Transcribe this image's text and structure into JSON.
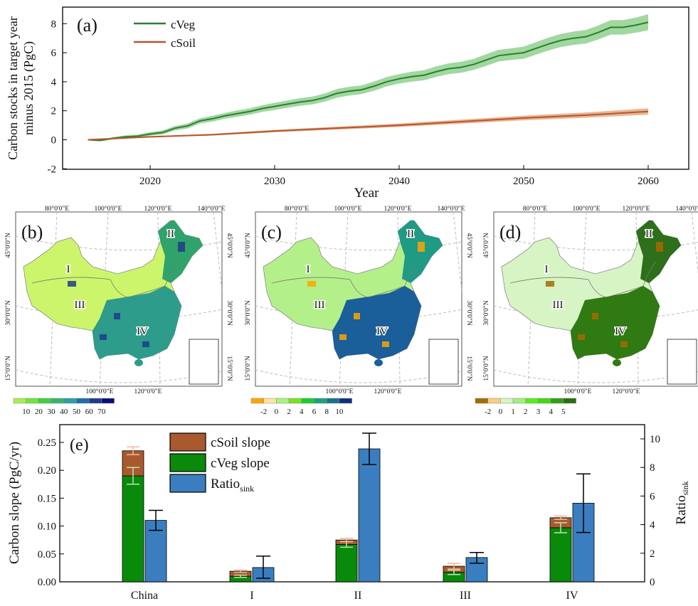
{
  "chart_data": [
    {
      "type": "line",
      "panel_label": "(a)",
      "xlabel": "Year",
      "ylabel": [
        "Carbon stocks in target year",
        "minus 2015 (PgC)"
      ],
      "xlim": [
        2013,
        2063
      ],
      "ylim": [
        -2,
        9.1
      ],
      "xticks": [
        2020,
        2030,
        2040,
        2050,
        2060
      ],
      "yticks": [
        -2,
        0,
        2,
        4,
        6,
        8
      ],
      "legend": "top-left",
      "series": [
        {
          "name": "cVeg",
          "color": "#2e7d32",
          "band_color": "#8fd18f",
          "x": [
            2015,
            2016,
            2017,
            2018,
            2019,
            2020,
            2021,
            2022,
            2023,
            2024,
            2025,
            2026,
            2027,
            2028,
            2029,
            2030,
            2031,
            2032,
            2033,
            2034,
            2035,
            2036,
            2037,
            2038,
            2039,
            2040,
            2041,
            2042,
            2043,
            2044,
            2045,
            2046,
            2047,
            2048,
            2049,
            2050,
            2051,
            2052,
            2053,
            2054,
            2055,
            2056,
            2057,
            2058,
            2059,
            2060
          ],
          "y": [
            0,
            -0.05,
            0.1,
            0.2,
            0.25,
            0.4,
            0.5,
            0.8,
            0.95,
            1.3,
            1.45,
            1.65,
            1.8,
            1.95,
            2.15,
            2.3,
            2.45,
            2.6,
            2.7,
            2.9,
            3.2,
            3.35,
            3.45,
            3.7,
            4.0,
            4.2,
            4.35,
            4.45,
            4.7,
            4.9,
            5.0,
            5.2,
            5.5,
            5.8,
            5.9,
            6.0,
            6.3,
            6.6,
            6.85,
            7.0,
            7.1,
            7.4,
            7.75,
            7.75,
            7.9,
            8.1
          ],
          "band": [
            0,
            0.05,
            0.08,
            0.1,
            0.1,
            0.12,
            0.14,
            0.15,
            0.17,
            0.18,
            0.2,
            0.2,
            0.22,
            0.22,
            0.23,
            0.25,
            0.25,
            0.26,
            0.27,
            0.28,
            0.3,
            0.3,
            0.3,
            0.32,
            0.32,
            0.33,
            0.34,
            0.35,
            0.36,
            0.37,
            0.38,
            0.38,
            0.4,
            0.4,
            0.4,
            0.42,
            0.43,
            0.44,
            0.45,
            0.46,
            0.47,
            0.48,
            0.5,
            0.5,
            0.52,
            0.55
          ]
        },
        {
          "name": "cSoil",
          "color": "#b5562a",
          "band_color": "#e8a882",
          "x": [
            2015,
            2020,
            2025,
            2030,
            2035,
            2040,
            2045,
            2050,
            2055,
            2060
          ],
          "y": [
            0,
            0.2,
            0.35,
            0.6,
            0.8,
            1.0,
            1.25,
            1.5,
            1.7,
            1.95
          ],
          "band": [
            0,
            0.04,
            0.06,
            0.08,
            0.1,
            0.12,
            0.14,
            0.16,
            0.18,
            0.22
          ]
        }
      ]
    },
    {
      "type": "bar",
      "panel_label": "(e)",
      "categories": [
        "China",
        "I",
        "II",
        "III",
        "IV"
      ],
      "ylabel": "Carbon slope (PgC/yr)",
      "y2label": "Ratio",
      "y2label_sub": "sink",
      "ylim": [
        0,
        0.275
      ],
      "y2lim": [
        0,
        10.85
      ],
      "yticks": [
        "0.00",
        "0.05",
        "0.10",
        "0.15",
        "0.20",
        "0.25"
      ],
      "y2ticks": [
        0,
        2,
        4,
        6,
        8,
        10
      ],
      "legend": "top-left",
      "series": [
        {
          "name": "cSoil slope",
          "stack": "carbon",
          "color": "#a85a2e",
          "values": [
            0.045,
            0.009,
            0.008,
            0.011,
            0.018
          ],
          "err": [
            0.007,
            0.002,
            0.003,
            0.005,
            0.003
          ]
        },
        {
          "name": "cVeg slope",
          "stack": "carbon",
          "color": "#0a8a0a",
          "values": [
            0.19,
            0.01,
            0.067,
            0.017,
            0.097
          ],
          "err": [
            0.015,
            0.002,
            0.005,
            0.004,
            0.009
          ]
        },
        {
          "name": "Ratio",
          "name_sub": "sink",
          "axis": "right",
          "color": "#3a7ebf",
          "values": [
            4.3,
            1.0,
            9.3,
            1.7,
            5.5
          ],
          "err_low": [
            3.6,
            0.25,
            8.2,
            1.3,
            3.45
          ],
          "err_high": [
            5.0,
            1.8,
            10.4,
            2.05,
            7.55
          ]
        }
      ]
    }
  ],
  "maps": [
    {
      "label": "(b)",
      "base": "#cdf56b",
      "II": "#2fa36b",
      "IV": "#2d9c8a",
      "patch": "#1f3c8c",
      "colorbar": {
        "colors": [
          "#a6ef50",
          "#6ee63a",
          "#3dd13f",
          "#37b46a",
          "#2aa3a0",
          "#1e6fa6",
          "#1f3c8c",
          "#0a0d78"
        ],
        "ticks": [
          "10",
          "20",
          "30",
          "40",
          "50",
          "60",
          "70"
        ],
        "tick_start": 1
      }
    },
    {
      "label": "(c)",
      "base": "#b4f08a",
      "II": "#1f9a85",
      "IV": "#1a5e9a",
      "patch": "#ffa500",
      "colorbar": {
        "colors": [
          "#ffa500",
          "#ffe4a0",
          "#a8f57a",
          "#79e21a",
          "#14d12a",
          "#1aa37a",
          "#17728a",
          "#0f2f80"
        ],
        "ticks": [
          "-2",
          "0",
          "2",
          "4",
          "6",
          "8",
          "10"
        ],
        "tick_start": 1
      }
    },
    {
      "label": "(d)",
      "base": "#d7f5c4",
      "II": "#2d6f1a",
      "IV": "#2f7a12",
      "patch": "#a86a00",
      "colorbar": {
        "colors": [
          "#a86a00",
          "#ffcc80",
          "#d4f7c0",
          "#a0f080",
          "#55ef1a",
          "#44d810",
          "#2fa010",
          "#267010"
        ],
        "ticks": [
          "-2",
          "0",
          "1",
          "2",
          "3",
          "4",
          "5"
        ],
        "tick_start": 1
      }
    }
  ],
  "map_labels": {
    "lon_top": [
      "80°0'0\"E",
      "100°0'0\"E",
      "120°0'0\"E",
      "140°0'0\"E"
    ],
    "lon_bottom": [
      "100°0'0\"E",
      "120°0'0\"E"
    ],
    "lat": [
      "45°0'0\"N",
      "30°0'0\"N",
      "15°0'0\"N"
    ],
    "regions": [
      "I",
      "II",
      "III",
      "IV"
    ]
  }
}
